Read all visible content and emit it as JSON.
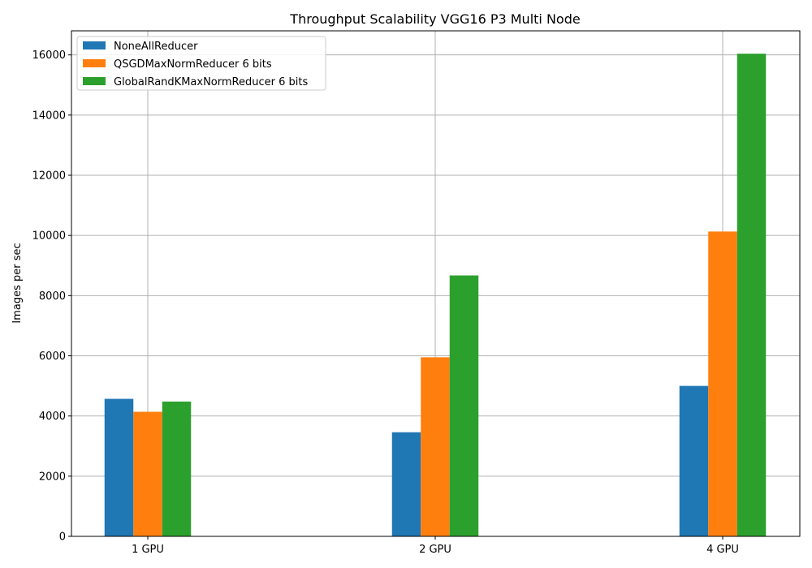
{
  "chart_data": {
    "type": "bar",
    "title": "Throughput Scalability VGG16 P3 Multi Node",
    "xlabel": "",
    "ylabel": "Images per sec",
    "categories": [
      "1 GPU",
      "2 GPU",
      "4 GPU"
    ],
    "ylim": [
      0,
      16800
    ],
    "yticks": [
      0,
      2000,
      4000,
      6000,
      8000,
      10000,
      12000,
      14000,
      16000
    ],
    "grid": true,
    "legend_position": "top-left",
    "series": [
      {
        "name": "NoneAllReducer",
        "color": "#1f77b4",
        "values": [
          4570,
          3460,
          5000
        ]
      },
      {
        "name": "QSGDMaxNormReducer 6 bits",
        "color": "#ff7f0e",
        "values": [
          4140,
          5950,
          10130
        ]
      },
      {
        "name": "GlobalRandKMaxNormReducer 6 bits",
        "color": "#2ca02c",
        "values": [
          4480,
          8670,
          16040
        ]
      }
    ]
  }
}
